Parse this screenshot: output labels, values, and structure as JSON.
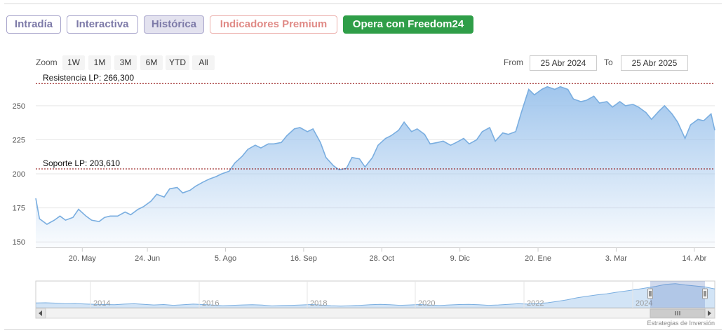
{
  "tabs": [
    {
      "label": "Intradía"
    },
    {
      "label": "Interactiva"
    },
    {
      "label": "Histórica"
    },
    {
      "label": "Indicadores Premium"
    },
    {
      "label": "Opera con Freedom24"
    }
  ],
  "colors": {
    "tab_text": "#7d7aa8",
    "tab_border": "#a9a6cc",
    "tab_active_bg": "#e3e2ef",
    "premium_text": "#e08a86",
    "premium_border": "#ecb0ad",
    "freedom_bg": "#2f9e48",
    "series_line": "#7aaee0",
    "series_fill": "#9cc3ec",
    "level_line": "#8b0000"
  },
  "zoom": {
    "label": "Zoom",
    "buttons": [
      "1W",
      "1M",
      "3M",
      "6M",
      "YTD",
      "All"
    ]
  },
  "range": {
    "from_label": "From",
    "from_value": "25 Abr 2024",
    "to_label": "To",
    "to_value": "25 Abr 2025"
  },
  "chart_data": {
    "type": "area",
    "y_ticks": [
      150,
      175,
      200,
      225,
      250
    ],
    "ylim": [
      146,
      270
    ],
    "x_range": [
      "2024-04-25",
      "2025-04-25"
    ],
    "x_ticks": [
      {
        "date": "2024-05-20",
        "label": "20. May"
      },
      {
        "date": "2024-06-24",
        "label": "24. Jun"
      },
      {
        "date": "2024-08-05",
        "label": "5. Ago"
      },
      {
        "date": "2024-09-16",
        "label": "16. Sep"
      },
      {
        "date": "2024-10-28",
        "label": "28. Oct"
      },
      {
        "date": "2024-12-09",
        "label": "9. Dic"
      },
      {
        "date": "2025-01-20",
        "label": "20. Ene"
      },
      {
        "date": "2025-03-03",
        "label": "3. Mar"
      },
      {
        "date": "2025-04-14",
        "label": "14. Abr"
      }
    ],
    "plot_lines": [
      {
        "label": "Resistencia LP: 266,300",
        "value": 266.3
      },
      {
        "label": "Soporte LP: 203,610",
        "value": 203.61
      }
    ],
    "series": [
      {
        "x": [
          "2024-04-25",
          "2024-04-27",
          "2024-05-01",
          "2024-05-05",
          "2024-05-08",
          "2024-05-11",
          "2024-05-15",
          "2024-05-18",
          "2024-05-22",
          "2024-05-25",
          "2024-05-29",
          "2024-06-01",
          "2024-06-04",
          "2024-06-08",
          "2024-06-12",
          "2024-06-15",
          "2024-06-19",
          "2024-06-22",
          "2024-06-26",
          "2024-06-29",
          "2024-07-03",
          "2024-07-06",
          "2024-07-10",
          "2024-07-13",
          "2024-07-17",
          "2024-07-20",
          "2024-07-24",
          "2024-07-27",
          "2024-07-31",
          "2024-08-03",
          "2024-08-07",
          "2024-08-10",
          "2024-08-14",
          "2024-08-17",
          "2024-08-21",
          "2024-08-24",
          "2024-08-28",
          "2024-08-31",
          "2024-09-04",
          "2024-09-07",
          "2024-09-11",
          "2024-09-14",
          "2024-09-18",
          "2024-09-21",
          "2024-09-25",
          "2024-09-28",
          "2024-10-02",
          "2024-10-05",
          "2024-10-09",
          "2024-10-12",
          "2024-10-16",
          "2024-10-19",
          "2024-10-23",
          "2024-10-26",
          "2024-10-30",
          "2024-11-02",
          "2024-11-06",
          "2024-11-09",
          "2024-11-13",
          "2024-11-16",
          "2024-11-20",
          "2024-11-23",
          "2024-11-27",
          "2024-11-30",
          "2024-12-04",
          "2024-12-07",
          "2024-12-11",
          "2024-12-14",
          "2024-12-18",
          "2024-12-21",
          "2024-12-25",
          "2024-12-28",
          "2025-01-01",
          "2025-01-04",
          "2025-01-08",
          "2025-01-11",
          "2025-01-15",
          "2025-01-18",
          "2025-01-22",
          "2025-01-25",
          "2025-01-29",
          "2025-02-01",
          "2025-02-05",
          "2025-02-08",
          "2025-02-12",
          "2025-02-15",
          "2025-02-19",
          "2025-02-22",
          "2025-02-26",
          "2025-03-01",
          "2025-03-05",
          "2025-03-08",
          "2025-03-12",
          "2025-03-15",
          "2025-03-19",
          "2025-03-22",
          "2025-03-26",
          "2025-03-29",
          "2025-04-02",
          "2025-04-05",
          "2025-04-09",
          "2025-04-12",
          "2025-04-16",
          "2025-04-19",
          "2025-04-23",
          "2025-04-25"
        ],
        "y": [
          182,
          167,
          163,
          166,
          169,
          166,
          168,
          174,
          169,
          166,
          165,
          168,
          169,
          169,
          172,
          170,
          174,
          176,
          180,
          185,
          183,
          189,
          190,
          186,
          188,
          191,
          194,
          196,
          198,
          200,
          202,
          208,
          213,
          218,
          221,
          219,
          222,
          222,
          223,
          228,
          233,
          234,
          231,
          233,
          223,
          212,
          206,
          203,
          204,
          212,
          211,
          205,
          212,
          221,
          226,
          228,
          232,
          238,
          231,
          233,
          229,
          222,
          223,
          224,
          221,
          223,
          226,
          222,
          225,
          231,
          234,
          224,
          230,
          229,
          231,
          245,
          262,
          258,
          262,
          264,
          262,
          264,
          262,
          255,
          253,
          254,
          257,
          252,
          253,
          249,
          253,
          250,
          251,
          249,
          245,
          240,
          246,
          250,
          244,
          238,
          226,
          236,
          240,
          239,
          244,
          232
        ]
      }
    ],
    "navigator": {
      "x_ticks": [
        "2014",
        "2016",
        "2018",
        "2020",
        "2022",
        "2024"
      ],
      "values": [
        164,
        165,
        163,
        160,
        161,
        159,
        157,
        156,
        155,
        158,
        160,
        157,
        154,
        156,
        152,
        155,
        158,
        156,
        153,
        150,
        152,
        154,
        155,
        153,
        149,
        151,
        152,
        154,
        156,
        153,
        150,
        148,
        150,
        152,
        155,
        157,
        155,
        152,
        154,
        156,
        153,
        151,
        154,
        156,
        157,
        155,
        152,
        154,
        157,
        160,
        158,
        161,
        165,
        172,
        180,
        190,
        198,
        205,
        210,
        218,
        225,
        232,
        240,
        248,
        258,
        262,
        255,
        250,
        245,
        235
      ]
    }
  },
  "credits": "Estrategias de Inversión"
}
